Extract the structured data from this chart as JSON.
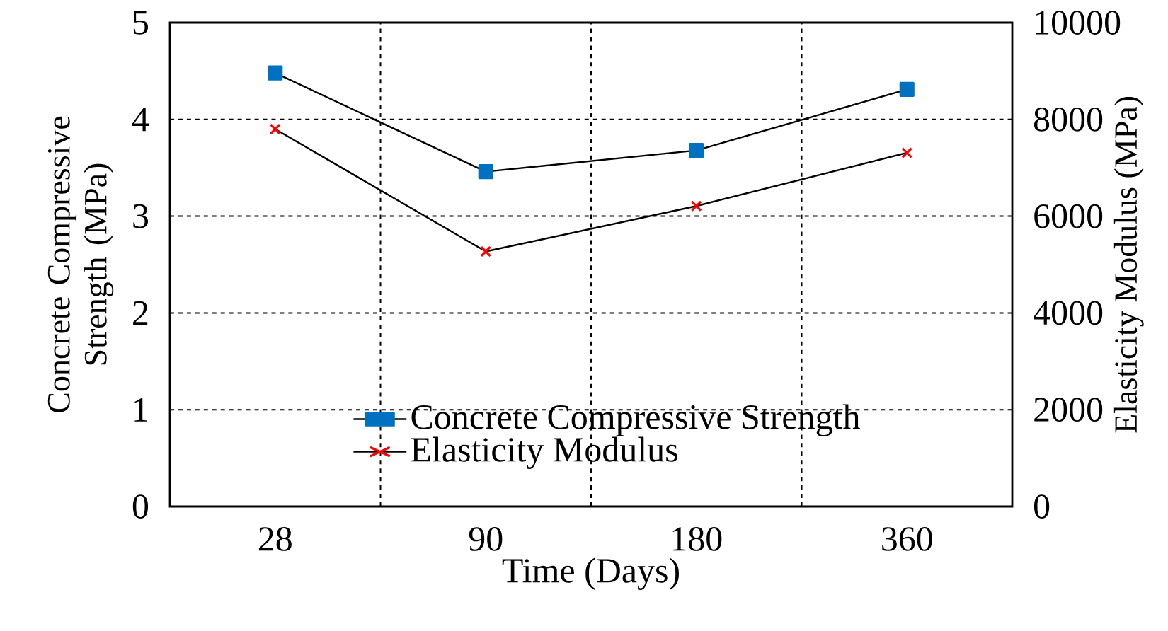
{
  "chart_data": {
    "type": "line",
    "xlabel": "Time (Days)",
    "ylabel": "Concrete Compressive Strength (MPa)",
    "y2label": "Elasticity Modulus (MPa)",
    "categories": [
      "28",
      "90",
      "180",
      "360"
    ],
    "ylim": [
      0,
      5
    ],
    "yticks": [
      0,
      1,
      2,
      3,
      4,
      5
    ],
    "y2lim": [
      0,
      10000
    ],
    "y2ticks": [
      0,
      2000,
      4000,
      6000,
      8000,
      10000
    ],
    "grid": true,
    "legend": "bottom",
    "line_style": "solid",
    "series": [
      {
        "name": "Concrete Compressive Strength",
        "color": "#0070c0",
        "marker": "square",
        "values": [
          4.48,
          3.46,
          3.68,
          4.31
        ]
      },
      {
        "name": "Elasticity Modulus",
        "color": "#ff0000",
        "marker": "cross",
        "axis": "y2",
        "values": [
          7800,
          5270,
          6210,
          7310
        ]
      }
    ]
  }
}
